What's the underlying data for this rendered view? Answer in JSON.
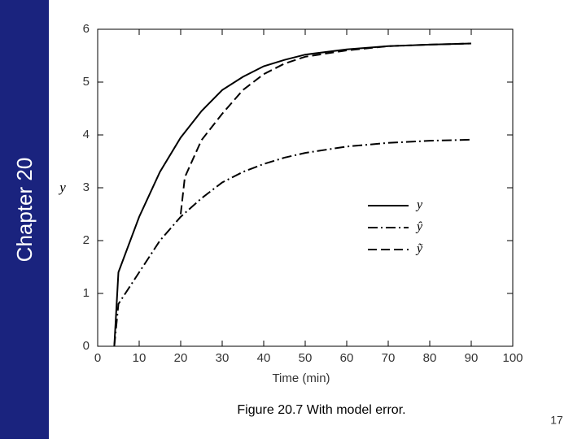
{
  "slide": {
    "sidebar": "Chapter 20",
    "caption": "Figure 20.7 With model error.",
    "page_number": "17"
  },
  "chart_data": {
    "type": "line",
    "x_label": "Time (min)",
    "y_label": "y",
    "x": [
      4,
      5,
      10,
      15,
      20,
      21,
      25,
      30,
      35,
      40,
      45,
      50,
      60,
      70,
      80,
      90
    ],
    "series": [
      {
        "name": "y",
        "color": "#000000",
        "style": "solid",
        "values": [
          0,
          1.4,
          2.45,
          3.3,
          3.95,
          4.05,
          4.45,
          4.85,
          5.1,
          5.3,
          5.42,
          5.52,
          5.62,
          5.68,
          5.71,
          5.73
        ]
      },
      {
        "name": "ŷ",
        "color": "#000000",
        "style": "dashdot",
        "values": [
          0,
          0.8,
          1.4,
          2.0,
          2.45,
          2.52,
          2.8,
          3.1,
          3.3,
          3.45,
          3.57,
          3.66,
          3.78,
          3.85,
          3.89,
          3.91
        ]
      },
      {
        "name": "ỹ",
        "color": "#000000",
        "style": "dashed",
        "values": [
          null,
          null,
          null,
          null,
          2.5,
          3.2,
          3.9,
          4.4,
          4.85,
          5.15,
          5.35,
          5.48,
          5.6,
          5.68,
          5.71,
          5.73
        ]
      }
    ],
    "xlim": [
      0,
      100
    ],
    "xticks": [
      0,
      10,
      20,
      30,
      40,
      50,
      60,
      70,
      80,
      90,
      100
    ],
    "ylim": [
      0,
      6
    ],
    "yticks": [
      0,
      1,
      2,
      3,
      4,
      5,
      6
    ],
    "legend": "right"
  }
}
